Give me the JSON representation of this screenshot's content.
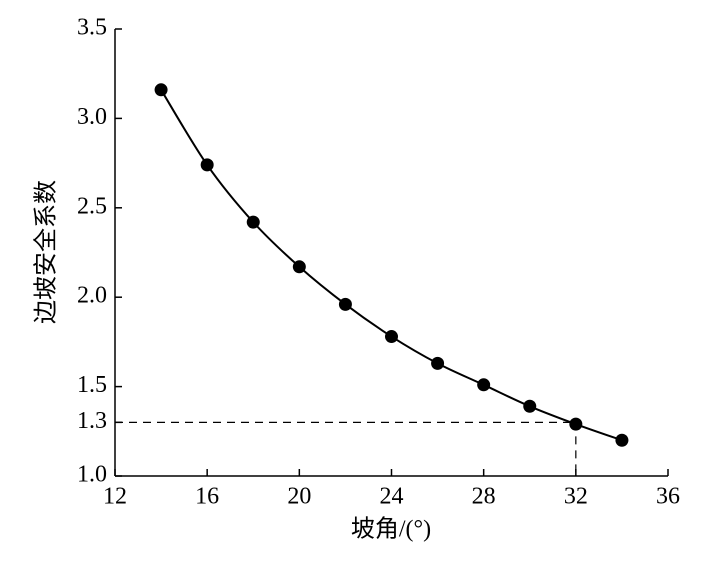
{
  "chart_data": {
    "type": "line",
    "xlabel": "坡角/(°)",
    "ylabel": "边坡安全系数",
    "x": [
      14,
      16,
      18,
      20,
      22,
      24,
      26,
      28,
      30,
      32,
      34
    ],
    "series": [
      {
        "color": "#000000",
        "values": [
          3.16,
          2.74,
          2.42,
          2.17,
          1.96,
          1.78,
          1.63,
          1.51,
          1.39,
          1.29,
          1.2
        ]
      }
    ],
    "xlim": [
      12,
      36
    ],
    "xticks": [
      12,
      16,
      20,
      24,
      28,
      32,
      36
    ],
    "ylim": [
      1,
      3.5
    ],
    "yticks": [
      {
        "value": 1,
        "label": "1.0"
      },
      1.3,
      1.5,
      {
        "value": 2,
        "label": "2.0"
      },
      2.5,
      {
        "value": 3,
        "label": "3.0"
      },
      3.5
    ],
    "reference": {
      "x": 32,
      "y": 1.3
    },
    "grid": false
  }
}
